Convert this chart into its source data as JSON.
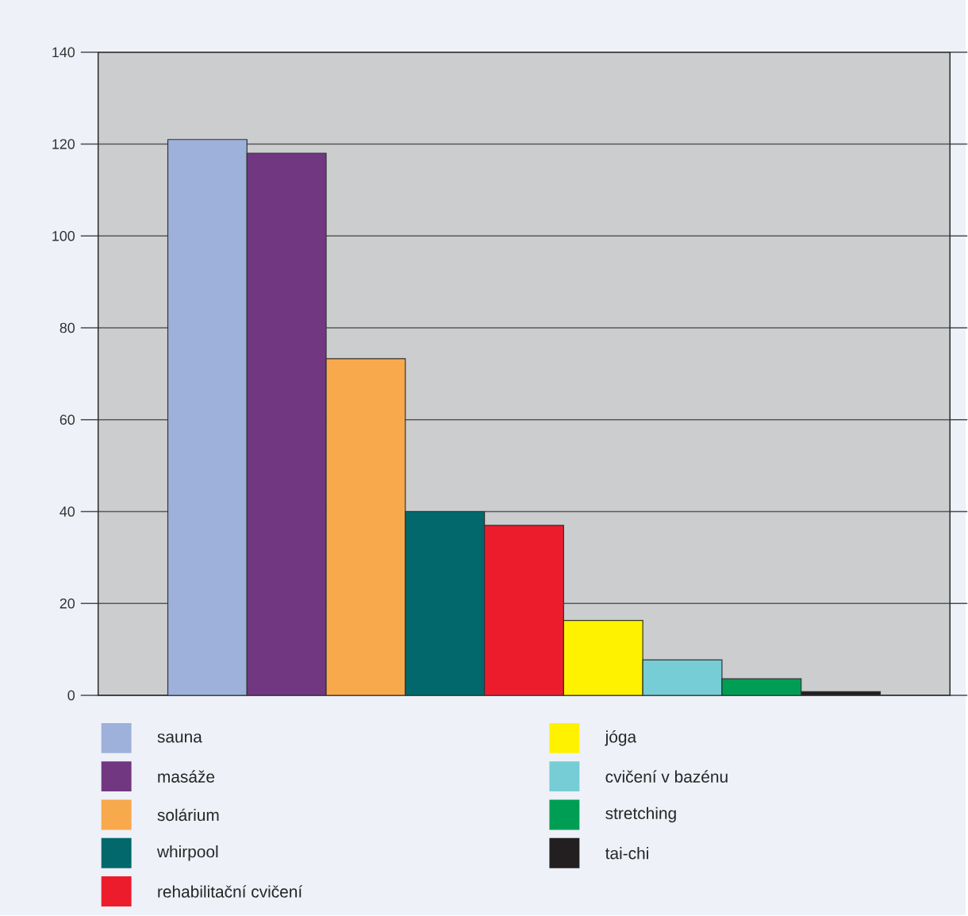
{
  "chart_data": {
    "type": "bar",
    "categories": [
      null
    ],
    "series": [
      {
        "name": "sauna",
        "color": "#9db1da",
        "values": [
          121
        ]
      },
      {
        "name": "masáže",
        "color": "#713781",
        "values": [
          118
        ]
      },
      {
        "name": "solárium",
        "color": "#f7a94c",
        "values": [
          73.3
        ]
      },
      {
        "name": "whirpool",
        "color": "#02686b",
        "values": [
          40
        ]
      },
      {
        "name": "rehabilitační cvičení",
        "color": "#ec1c2d",
        "values": [
          37
        ]
      },
      {
        "name": "jóga",
        "color": "#fff200",
        "values": [
          16.3
        ]
      },
      {
        "name": "cvičení v bazénu",
        "color": "#76cdd5",
        "values": [
          7.7
        ]
      },
      {
        "name": "stretching",
        "color": "#009e54",
        "values": [
          3.6
        ]
      },
      {
        "name": "tai-chi",
        "color": "#231f20",
        "values": [
          0.8
        ]
      }
    ],
    "ylim": [
      0,
      140
    ],
    "yticks": [
      0,
      20,
      40,
      60,
      80,
      100,
      120,
      140
    ],
    "grid": "y",
    "legend": "bottom"
  }
}
